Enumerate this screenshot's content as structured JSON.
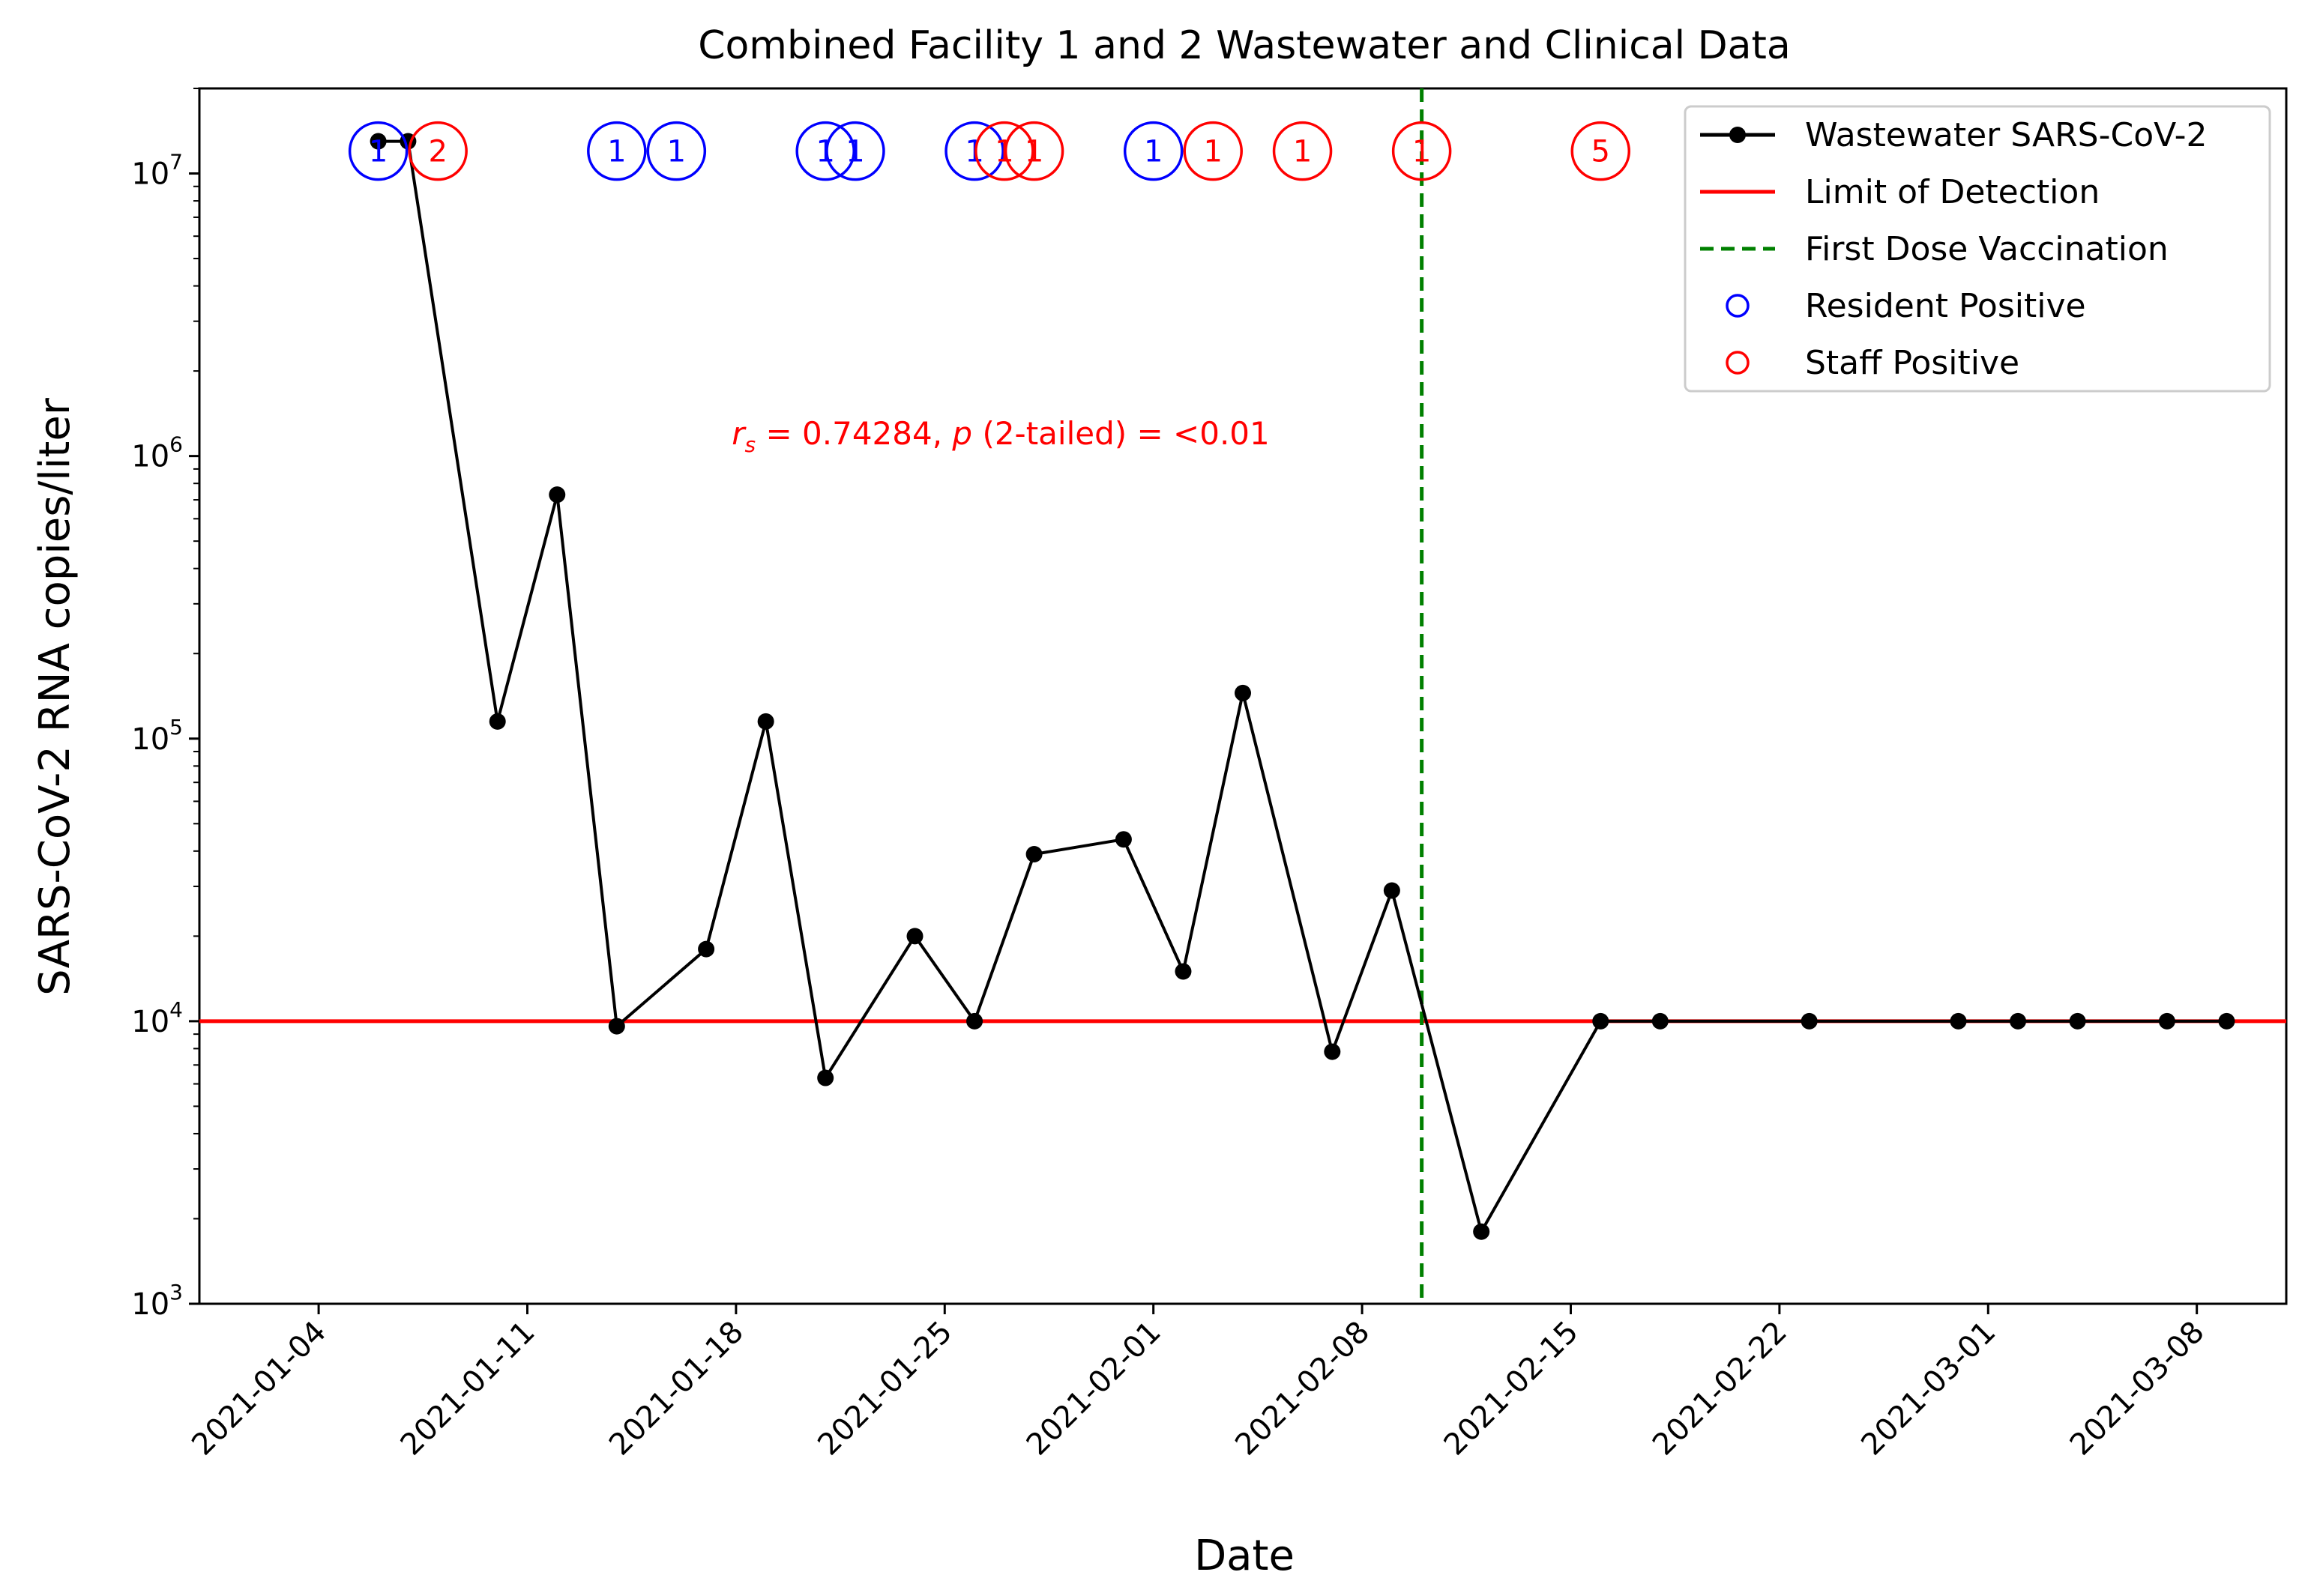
{
  "chart_data": {
    "type": "line",
    "title": "Combined Facility 1 and 2 Wastewater and Clinical Data",
    "xlabel": "Date",
    "ylabel": "SARS-CoV-2 RNA copies/liter",
    "yscale": "log",
    "ylim": [
      1000,
      20000000
    ],
    "xlim": [
      "2020-12-31",
      "2021-03-11"
    ],
    "x_ticks": [
      "2021-01-04",
      "2021-01-11",
      "2021-01-18",
      "2021-01-25",
      "2021-02-01",
      "2021-02-08",
      "2021-02-15",
      "2021-02-22",
      "2021-03-01",
      "2021-03-08"
    ],
    "y_ticks": [
      {
        "value": 1000,
        "base": "10",
        "exp": "3"
      },
      {
        "value": 10000,
        "base": "10",
        "exp": "4"
      },
      {
        "value": 100000,
        "base": "10",
        "exp": "5"
      },
      {
        "value": 1000000,
        "base": "10",
        "exp": "6"
      },
      {
        "value": 10000000,
        "base": "10",
        "exp": "7"
      }
    ],
    "series": [
      {
        "name": "Wastewater SARS-CoV-2",
        "color": "#000000",
        "points": [
          {
            "x": "2021-01-06",
            "y": 13000000
          },
          {
            "x": "2021-01-07",
            "y": 13000000
          },
          {
            "x": "2021-01-10",
            "y": 115000
          },
          {
            "x": "2021-01-12",
            "y": 730000
          },
          {
            "x": "2021-01-14",
            "y": 9600
          },
          {
            "x": "2021-01-17",
            "y": 18000
          },
          {
            "x": "2021-01-19",
            "y": 115000
          },
          {
            "x": "2021-01-21",
            "y": 6300
          },
          {
            "x": "2021-01-24",
            "y": 20000
          },
          {
            "x": "2021-01-26",
            "y": 10000
          },
          {
            "x": "2021-01-28",
            "y": 39000
          },
          {
            "x": "2021-01-31",
            "y": 44000
          },
          {
            "x": "2021-02-02",
            "y": 15000
          },
          {
            "x": "2021-02-04",
            "y": 145000
          },
          {
            "x": "2021-02-07",
            "y": 7800
          },
          {
            "x": "2021-02-09",
            "y": 29000
          },
          {
            "x": "2021-02-12",
            "y": 1800
          },
          {
            "x": "2021-02-16",
            "y": 10000
          },
          {
            "x": "2021-02-18",
            "y": 10000
          },
          {
            "x": "2021-02-23",
            "y": 10000
          },
          {
            "x": "2021-02-28",
            "y": 10000
          },
          {
            "x": "2021-03-02",
            "y": 10000
          },
          {
            "x": "2021-03-04",
            "y": 10000
          },
          {
            "x": "2021-03-07",
            "y": 10000
          },
          {
            "x": "2021-03-09",
            "y": 10000
          }
        ]
      }
    ],
    "limit_of_detection": {
      "name": "Limit of Detection",
      "value": 10000,
      "color": "#ff0000"
    },
    "vaccination_line": {
      "name": "First Dose Vaccination",
      "date": "2021-02-10",
      "color": "#008000"
    },
    "case_markers": [
      {
        "type": "resident",
        "date": "2021-01-06",
        "count": "1"
      },
      {
        "type": "staff",
        "date": "2021-01-08",
        "count": "2"
      },
      {
        "type": "resident",
        "date": "2021-01-14",
        "count": "1"
      },
      {
        "type": "resident",
        "date": "2021-01-16",
        "count": "1"
      },
      {
        "type": "resident",
        "date": "2021-01-21",
        "count": "1"
      },
      {
        "type": "resident",
        "date": "2021-01-22",
        "count": "1"
      },
      {
        "type": "resident",
        "date": "2021-01-26",
        "count": "1"
      },
      {
        "type": "staff",
        "date": "2021-01-27",
        "count": "1"
      },
      {
        "type": "staff",
        "date": "2021-01-28",
        "count": "1"
      },
      {
        "type": "resident",
        "date": "2021-02-01",
        "count": "1"
      },
      {
        "type": "staff",
        "date": "2021-02-03",
        "count": "1"
      },
      {
        "type": "staff",
        "date": "2021-02-06",
        "count": "1"
      },
      {
        "type": "staff",
        "date": "2021-02-10",
        "count": "1"
      },
      {
        "type": "staff",
        "date": "2021-02-16",
        "count": "5"
      }
    ],
    "marker_level": 12000000,
    "legend": {
      "placement": "top-right",
      "entries": [
        {
          "label": "Wastewater SARS-CoV-2",
          "kind": "line-marker",
          "color": "#000000"
        },
        {
          "label": "Limit of Detection",
          "kind": "line",
          "color": "#ff0000"
        },
        {
          "label": "First Dose Vaccination",
          "kind": "dashed-line",
          "color": "#008000"
        },
        {
          "label": "Resident Positive",
          "kind": "circle",
          "color": "#0000ff"
        },
        {
          "label": "Staff Positive",
          "kind": "circle",
          "color": "#ff0000"
        }
      ]
    },
    "annotation": {
      "rs": "0.74284",
      "p": "<0.01"
    },
    "colors": {
      "resident": "#0000ff",
      "staff": "#ff0000",
      "line": "#000000"
    }
  }
}
